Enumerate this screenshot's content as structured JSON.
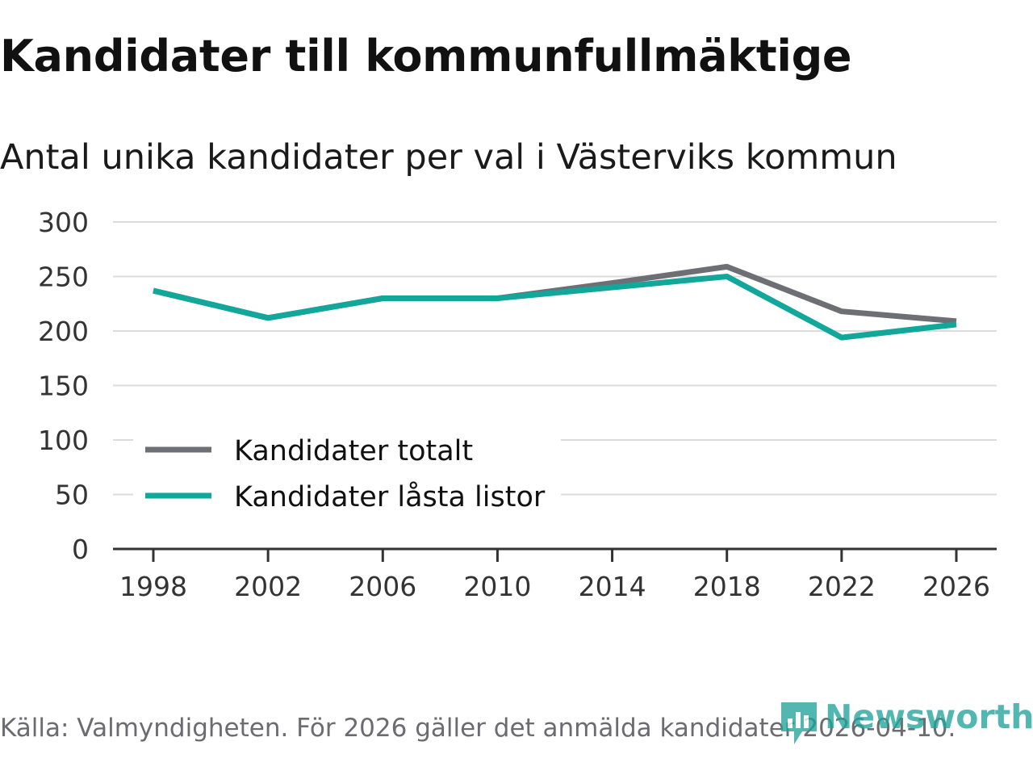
{
  "header": {
    "title": "Kandidater till kommunfullmäktige",
    "subtitle": "Antal unika kandidater per val i Västerviks kommun"
  },
  "footer": {
    "source": "Källa: Valmyndigheten. För 2026 gäller det anmälda kandidater 2026-04-10.",
    "brand": "Newsworthy"
  },
  "colors": {
    "total": "#6e6e75",
    "locked": "#11a79b",
    "grid": "#dcdcdc",
    "axis": "#333333",
    "brand": "#22a39a"
  },
  "chart_data": {
    "type": "line",
    "title": "Kandidater till kommunfullmäktige",
    "subtitle": "Antal unika kandidater per val i Västerviks kommun",
    "xlabel": "",
    "ylabel": "",
    "x": [
      1998,
      2002,
      2006,
      2010,
      2014,
      2018,
      2022,
      2026
    ],
    "x_ticks": [
      "1998",
      "2002",
      "2006",
      "2010",
      "2014",
      "2018",
      "2022",
      "2026"
    ],
    "y_ticks": [
      "0",
      "50",
      "100",
      "150",
      "200",
      "250",
      "300"
    ],
    "y_tick_values": [
      0,
      50,
      100,
      150,
      200,
      250,
      300
    ],
    "ylim": [
      0,
      300
    ],
    "grid": true,
    "legend_position": "bottom-left",
    "series": [
      {
        "name": "Kandidater totalt",
        "key": "total",
        "values": [
          237,
          212,
          230,
          230,
          244,
          259,
          218,
          209
        ]
      },
      {
        "name": "Kandidater låsta listor",
        "key": "locked",
        "values": [
          237,
          212,
          230,
          230,
          240,
          250,
          194,
          206
        ]
      }
    ]
  }
}
